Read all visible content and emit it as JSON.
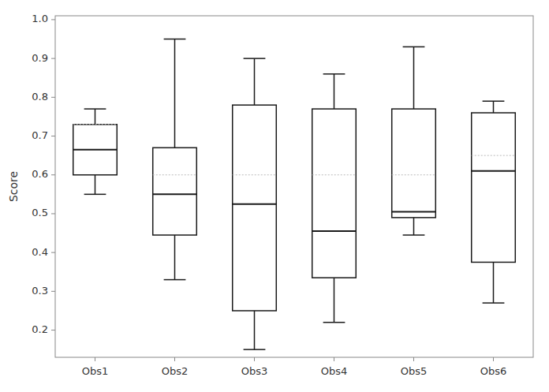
{
  "chart_data": {
    "type": "box",
    "categories": [
      "Obs1",
      "Obs2",
      "Obs3",
      "Obs4",
      "Obs5",
      "Obs6"
    ],
    "whislo": [
      0.55,
      0.33,
      0.15,
      0.22,
      0.445,
      0.27
    ],
    "q1": [
      0.6,
      0.445,
      0.25,
      0.335,
      0.49,
      0.375
    ],
    "median": [
      0.665,
      0.55,
      0.525,
      0.455,
      0.505,
      0.61
    ],
    "q3": [
      0.73,
      0.67,
      0.78,
      0.77,
      0.77,
      0.76
    ],
    "whishi": [
      0.77,
      0.95,
      0.9,
      0.86,
      0.93,
      0.79
    ],
    "means": [
      0.73,
      0.6,
      0.6,
      0.6,
      0.6,
      0.65
    ],
    "ylabel": "Score",
    "ylim": [
      0.13,
      1.01
    ],
    "yticks": [
      0.2,
      0.3,
      0.4,
      0.5,
      0.6,
      0.7,
      0.8,
      0.9,
      {
        "value": 1.0,
        "label": "1.0"
      }
    ],
    "grid": false,
    "color": "#1a1a1a"
  }
}
